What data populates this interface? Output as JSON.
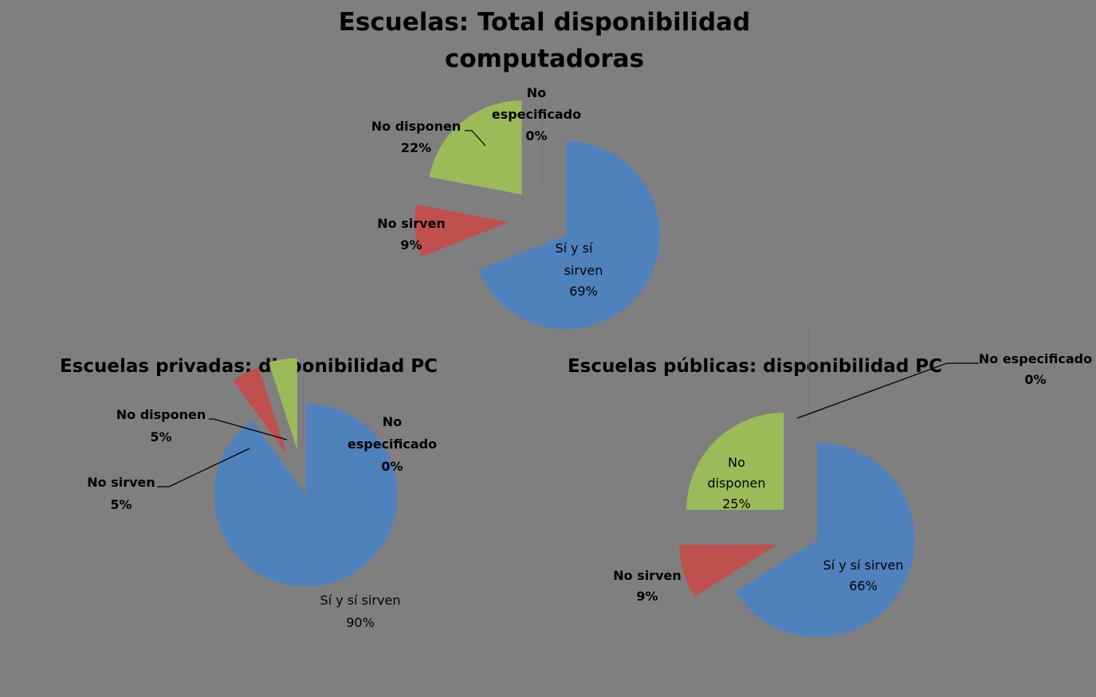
{
  "chart_data": [
    {
      "type": "pie",
      "exploded": true,
      "title": "Escuelas: Total disponibilidad computadoras",
      "categories": [
        "Sí y sí sirven",
        "No sirven",
        "No disponen",
        "No especificado"
      ],
      "values": [
        69,
        9,
        22,
        0
      ],
      "value_labels": [
        "69%",
        "9%",
        "22%",
        "0%"
      ],
      "colors": [
        "#4f81bd",
        "#c0504d",
        "#9bbb59",
        "#8064a2"
      ]
    },
    {
      "type": "pie",
      "exploded": true,
      "title": "Escuelas privadas: disponibilidad PC",
      "categories": [
        "Sí y sí sirven",
        "No sirven",
        "No disponen",
        "No especificado"
      ],
      "values": [
        90,
        5,
        5,
        0
      ],
      "value_labels": [
        "90%",
        "5%",
        "5%",
        "0%"
      ],
      "colors": [
        "#4f81bd",
        "#c0504d",
        "#9bbb59",
        "#8064a2"
      ]
    },
    {
      "type": "pie",
      "exploded": true,
      "title": "Escuelas públicas: disponibilidad PC",
      "categories": [
        "Sí y sí sirven",
        "No sirven",
        "No disponen",
        "No especificado"
      ],
      "values": [
        66,
        9,
        25,
        0
      ],
      "value_labels": [
        "66%",
        "9%",
        "25%",
        "0%"
      ],
      "colors": [
        "#4f81bd",
        "#c0504d",
        "#9bbb59",
        "#8064a2"
      ]
    }
  ]
}
